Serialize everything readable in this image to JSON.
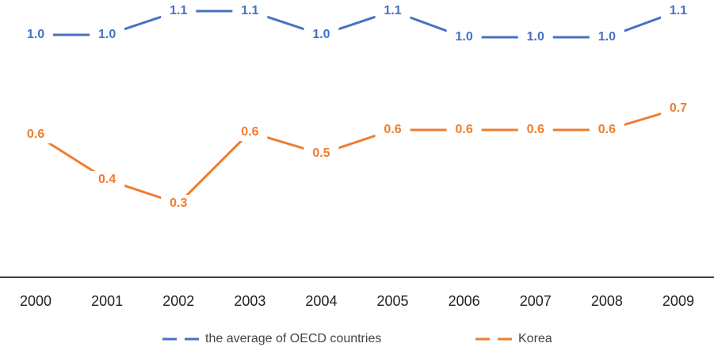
{
  "chart_data": {
    "type": "line",
    "categories": [
      "2000",
      "2001",
      "2002",
      "2003",
      "2004",
      "2005",
      "2006",
      "2007",
      "2008",
      "2009"
    ],
    "series": [
      {
        "name": "the average of OECD countries",
        "color": "#4472c4",
        "values": [
          1.01,
          1.01,
          1.11,
          1.11,
          1.01,
          1.11,
          1.0,
          1.0,
          1.0,
          1.11
        ],
        "value_labels": [
          "1.0",
          "1.0",
          "1.1",
          "1.1",
          "1.0",
          "1.1",
          "1.0",
          "1.0",
          "1.0",
          "1.1"
        ]
      },
      {
        "name": "Korea",
        "color": "#ed7d31",
        "values": [
          0.59,
          0.4,
          0.3,
          0.6,
          0.51,
          0.61,
          0.61,
          0.61,
          0.61,
          0.7
        ],
        "value_labels": [
          "0.6",
          "0.4",
          "0.3",
          "0.6",
          "0.5",
          "0.6",
          "0.6",
          "0.6",
          "0.6",
          "0.7"
        ]
      }
    ],
    "ylim": [
      0,
      1.15
    ],
    "legend": "bottom"
  }
}
